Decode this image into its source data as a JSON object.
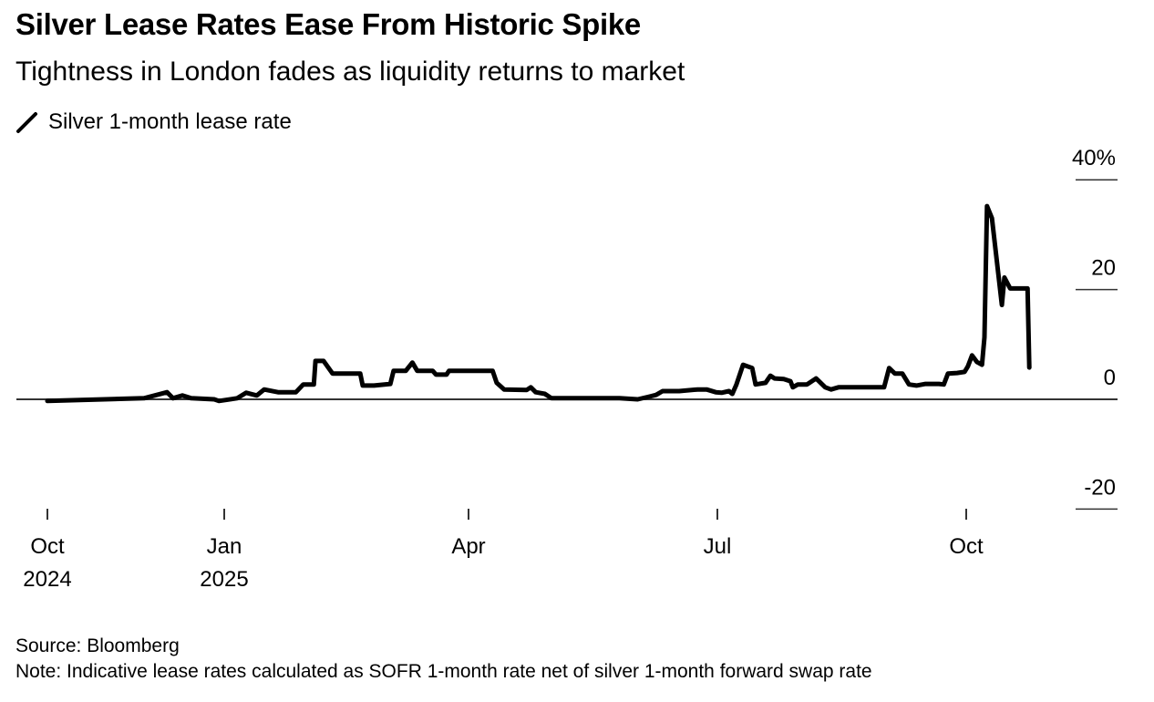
{
  "title": "Silver Lease Rates Ease From Historic Spike",
  "subtitle": "Tightness in London fades as liquidity returns to market",
  "source": "Source: Bloomberg",
  "note": "Note: Indicative lease rates calculated as SOFR 1-month rate net of silver 1-month forward swap rate",
  "chart_data": {
    "type": "line",
    "title": "Silver Lease Rates Ease From Historic Spike",
    "xlabel": "",
    "ylabel": "",
    "x_unit": "months since Oct 2024",
    "ylim": [
      -20,
      40
    ],
    "yticks": [
      {
        "value": 40,
        "label": "40%"
      },
      {
        "value": 20,
        "label": "20"
      },
      {
        "value": 0,
        "label": "0"
      },
      {
        "value": -20,
        "label": "-20"
      }
    ],
    "xticks": [
      {
        "value": 0,
        "label": "Oct",
        "sub": "2024"
      },
      {
        "value": 3,
        "label": "Jan",
        "sub": "2025"
      },
      {
        "value": 6,
        "label": "Apr",
        "sub": ""
      },
      {
        "value": 9,
        "label": "Jul",
        "sub": ""
      },
      {
        "value": 12,
        "label": "Oct",
        "sub": ""
      }
    ],
    "grid": false,
    "legend": "top-left",
    "series": [
      {
        "name": "Silver 1-month lease rate",
        "color": "#000000",
        "x": [
          0,
          1.64,
          2.03,
          2.13,
          2.29,
          2.44,
          2.83,
          2.91,
          3.16,
          3.27,
          3.4,
          3.49,
          3.66,
          3.88,
          3.97,
          4.1,
          4.12,
          4.22,
          4.33,
          4.67,
          4.7,
          4.84,
          5.04,
          5.08,
          5.23,
          5.31,
          5.37,
          5.56,
          5.6,
          5.73,
          5.76,
          6.29,
          6.34,
          6.43,
          6.7,
          6.75,
          6.81,
          6.92,
          7.0,
          7.82,
          8.04,
          8.18,
          8.26,
          8.34,
          8.54,
          8.76,
          8.87,
          8.98,
          9.05,
          9.14,
          9.18,
          9.23,
          9.31,
          9.42,
          9.46,
          9.58,
          9.64,
          9.69,
          9.8,
          9.88,
          9.91,
          9.97,
          10.08,
          10.19,
          10.3,
          10.37,
          10.46,
          11.01,
          11.07,
          11.14,
          11.23,
          11.31,
          11.4,
          11.51,
          11.67,
          11.73,
          11.78,
          11.89,
          11.98,
          12.02,
          12.07,
          12.13,
          12.19,
          12.22,
          12.25,
          12.31,
          12.43,
          12.46,
          12.53,
          12.74,
          12.76
        ],
        "values": [
          -0.3,
          0.2,
          1.3,
          0.2,
          0.7,
          0.2,
          0,
          -0.3,
          0.2,
          1.2,
          0.7,
          1.8,
          1.3,
          1.3,
          2.7,
          2.7,
          7,
          7,
          4.7,
          4.7,
          2.5,
          2.5,
          2.8,
          5.2,
          5.2,
          6.7,
          5.2,
          5.2,
          4.5,
          4.5,
          5.2,
          5.2,
          3,
          1.8,
          1.7,
          2.2,
          1.3,
          1,
          0.2,
          0.2,
          0,
          0.5,
          0.8,
          1.5,
          1.5,
          1.8,
          1.8,
          1.3,
          1.2,
          1.5,
          1,
          2.7,
          6.3,
          5.7,
          2.7,
          3,
          4.3,
          3.8,
          3.7,
          3.3,
          2.2,
          2.7,
          2.7,
          3.8,
          2.2,
          1.8,
          2.2,
          2.2,
          5.7,
          4.7,
          4.7,
          2.7,
          2.5,
          2.8,
          2.8,
          2.7,
          4.7,
          4.8,
          5,
          6,
          8,
          6.8,
          6.3,
          11.3,
          35.2,
          33,
          17.2,
          22.2,
          20.2,
          20.2,
          5.8
        ]
      }
    ]
  }
}
